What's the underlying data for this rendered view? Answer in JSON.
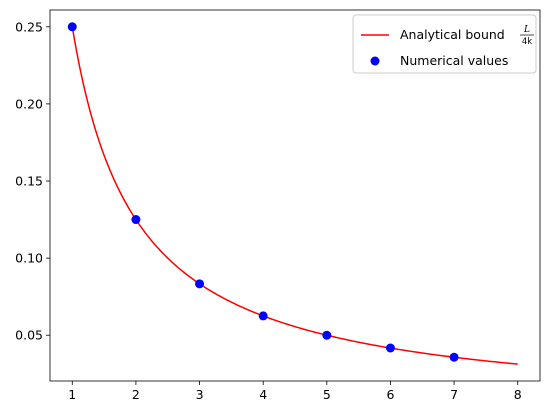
{
  "chart_data": {
    "type": "line",
    "title": "",
    "xlabel": "",
    "ylabel": "",
    "xlim": [
      0.65,
      8.35
    ],
    "ylim": [
      0.0203,
      0.2609
    ],
    "xticks": [
      1,
      2,
      3,
      4,
      5,
      6,
      7,
      8
    ],
    "xtick_labels": [
      "1",
      "2",
      "3",
      "4",
      "5",
      "6",
      "7",
      "8"
    ],
    "yticks": [
      0.05,
      0.1,
      0.15,
      0.2,
      0.25
    ],
    "ytick_labels": [
      "0.05",
      "0.10",
      "0.15",
      "0.20",
      "0.25"
    ],
    "grid": false,
    "legend_position": "top-right",
    "series": [
      {
        "name": "Analytical bound",
        "name_math_numerator": "L",
        "name_math_denominator": "4k",
        "kind": "line",
        "color": "#ff0000",
        "function": "0.25 / x",
        "x_range": [
          1,
          8
        ]
      },
      {
        "name": "Numerical values",
        "kind": "scatter",
        "color": "#0000ff",
        "x": [
          1,
          2,
          3,
          4,
          5,
          6,
          7
        ],
        "y": [
          0.25,
          0.125,
          0.0833,
          0.0625,
          0.05,
          0.0417,
          0.0357
        ]
      }
    ]
  }
}
